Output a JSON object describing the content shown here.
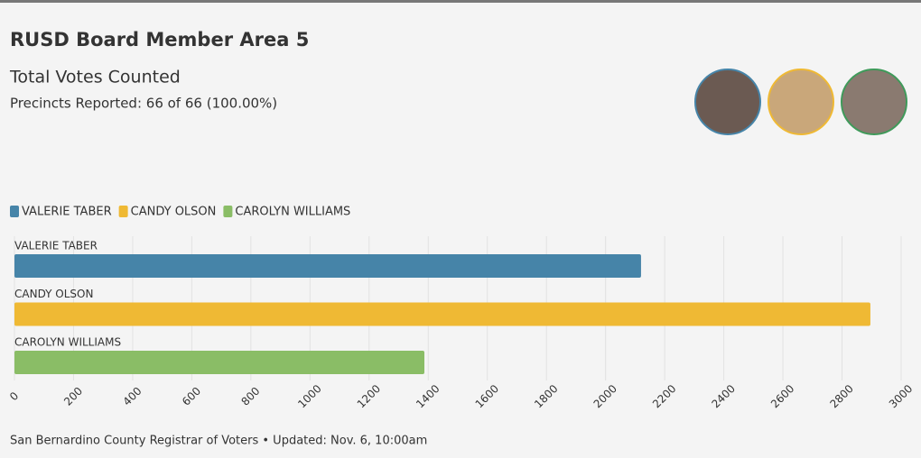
{
  "chart_data": {
    "type": "bar",
    "orientation": "horizontal",
    "title": "RUSD Board Member Area 5",
    "subtitle": "Total Votes Counted",
    "precincts": "Precincts Reported: 66 of 66 (100.00%)",
    "source": "San Bernardino County Registrar of Voters • Updated: Nov. 6, 10:00am",
    "categories": [
      "VALERIE TABER",
      "CANDY OLSON",
      "CAROLYN WILLIAMS"
    ],
    "values": [
      2120,
      2896,
      1387
    ],
    "colors": [
      "#4684a8",
      "#efb934",
      "#8abd66"
    ],
    "xlim": [
      0,
      3000
    ],
    "xticks": [
      0,
      200,
      400,
      600,
      800,
      1000,
      1200,
      1400,
      1600,
      1800,
      2000,
      2200,
      2400,
      2600,
      2800,
      3000
    ],
    "grid": true,
    "legend": "top-left"
  }
}
